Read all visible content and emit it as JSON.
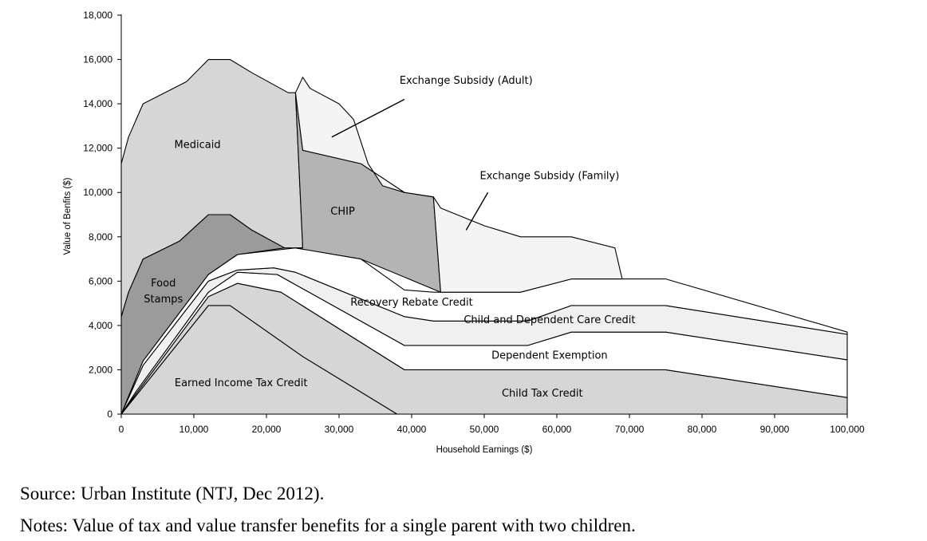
{
  "chart_data": {
    "type": "area",
    "xlabel": "Household Earnings ($)",
    "ylabel": "Value of Benfits ($)",
    "xlim": [
      0,
      100000
    ],
    "ylim": [
      0,
      18000
    ],
    "x_ticks": [
      0,
      10000,
      20000,
      30000,
      40000,
      50000,
      60000,
      70000,
      80000,
      90000,
      100000
    ],
    "x_tick_labels": [
      "0",
      "10,000",
      "20,000",
      "30,000",
      "40,000",
      "50,000",
      "60,000",
      "70,000",
      "80,000",
      "90,000",
      "100,000"
    ],
    "y_ticks": [
      0,
      2000,
      4000,
      6000,
      8000,
      10000,
      12000,
      14000,
      16000,
      18000
    ],
    "y_tick_labels": [
      "0",
      "2,000",
      "4,000",
      "6,000",
      "8,000",
      "10,000",
      "12,000",
      "14,000",
      "16,000",
      "18,000"
    ],
    "grid": false,
    "series": [
      {
        "name": "Earned Income Tax Credit",
        "color": "#d6d6d6",
        "points": [
          [
            0,
            0
          ],
          [
            12000,
            4900
          ],
          [
            15000,
            4900
          ],
          [
            25000,
            2600
          ],
          [
            38000,
            0
          ],
          [
            100000,
            0
          ]
        ],
        "label_at": [
          16500,
          1260
        ]
      },
      {
        "name": "Child Tax Credit",
        "color": "#d6d6d6",
        "points": [
          [
            0,
            0
          ],
          [
            2000,
            900
          ],
          [
            12000,
            5300
          ],
          [
            16000,
            5900
          ],
          [
            22000,
            5500
          ],
          [
            39000,
            2000
          ],
          [
            75000,
            2000
          ],
          [
            100000,
            750
          ]
        ],
        "label_at": [
          58000,
          800
        ]
      },
      {
        "name": "Dependent Exemption",
        "color": "#ffffff",
        "points": [
          [
            0,
            0
          ],
          [
            2000,
            1000
          ],
          [
            12000,
            5500
          ],
          [
            16000,
            6400
          ],
          [
            21500,
            6300
          ],
          [
            39000,
            3100
          ],
          [
            56000,
            3100
          ],
          [
            62000,
            3700
          ],
          [
            75000,
            3700
          ],
          [
            100000,
            2450
          ]
        ],
        "label_at": [
          59000,
          2500
        ]
      },
      {
        "name": "Child and Dependent Care Credit",
        "color": "#f0f0f0",
        "points": [
          [
            0,
            0
          ],
          [
            3000,
            2200
          ],
          [
            12000,
            6000
          ],
          [
            16000,
            6500
          ],
          [
            21000,
            6600
          ],
          [
            24000,
            6400
          ],
          [
            39000,
            4400
          ],
          [
            43000,
            4200
          ],
          [
            56000,
            4200
          ],
          [
            62000,
            4900
          ],
          [
            75000,
            4900
          ],
          [
            100000,
            3600
          ]
        ],
        "label_at": [
          59000,
          4100
        ]
      },
      {
        "name": "Recovery Rebate Credit",
        "color": "#ffffff",
        "points": [
          [
            0,
            0
          ],
          [
            3000,
            2400
          ],
          [
            12000,
            6300
          ],
          [
            16000,
            7200
          ],
          [
            24000,
            7500
          ],
          [
            33000,
            7000
          ],
          [
            39000,
            5600
          ],
          [
            43000,
            5500
          ],
          [
            55000,
            5500
          ],
          [
            62000,
            6100
          ],
          [
            75000,
            6100
          ],
          [
            100000,
            3700
          ]
        ],
        "label_at": [
          40000,
          4900
        ]
      },
      {
        "name": "Food Stamps",
        "color": "#9b9b9b",
        "points": [
          [
            0,
            4400
          ],
          [
            1000,
            5500
          ],
          [
            3000,
            7000
          ],
          [
            8000,
            7800
          ],
          [
            12000,
            9000
          ],
          [
            15000,
            9000
          ],
          [
            18000,
            8300
          ],
          [
            22500,
            7500
          ]
        ],
        "label_at": [
          5800,
          5400
        ]
      },
      {
        "name": "Medicaid",
        "color": "#d6d6d6",
        "points": [
          [
            0,
            11300
          ],
          [
            1000,
            12500
          ],
          [
            3000,
            14000
          ],
          [
            9000,
            15000
          ],
          [
            12000,
            16000
          ],
          [
            15000,
            16000
          ],
          [
            18000,
            15400
          ],
          [
            23000,
            14500
          ],
          [
            24000,
            14500
          ],
          [
            25000,
            7500
          ]
        ],
        "label_at": [
          10500,
          12000
        ]
      },
      {
        "name": "CHIP",
        "color": "#b4b4b4",
        "points": [
          [
            24000,
            14500
          ],
          [
            25000,
            11900
          ],
          [
            33000,
            11300
          ],
          [
            39000,
            10000
          ],
          [
            43000,
            9800
          ],
          [
            44000,
            5500
          ]
        ],
        "label_at": [
          30500,
          9000
        ]
      },
      {
        "name": "Exchange Subsidy (Adult)",
        "color": "#f4f4f4",
        "points": [
          [
            24000,
            14500
          ],
          [
            25000,
            15200
          ],
          [
            26000,
            14700
          ],
          [
            30000,
            14000
          ],
          [
            32000,
            13300
          ],
          [
            34000,
            11300
          ],
          [
            36000,
            10300
          ],
          [
            39000,
            10000
          ]
        ],
        "label_at": [
          47500,
          14900
        ]
      },
      {
        "name": "Exchange Subsidy (Family)",
        "color": "#f4f4f4",
        "points": [
          [
            43000,
            9800
          ],
          [
            44000,
            9300
          ],
          [
            50000,
            8500
          ],
          [
            55000,
            8000
          ],
          [
            62000,
            8000
          ],
          [
            68000,
            7500
          ],
          [
            69000,
            6100
          ]
        ],
        "label_at": [
          59000,
          10600
        ]
      }
    ],
    "leaders": [
      {
        "series": "Exchange Subsidy (Adult)",
        "from": [
          39000,
          14200
        ],
        "to": [
          29000,
          12500
        ]
      },
      {
        "series": "Exchange Subsidy (Family)",
        "from": [
          50500,
          10000
        ],
        "to": [
          47500,
          8300
        ]
      }
    ]
  },
  "notes": {
    "source": "Source: Urban Institute (NTJ, Dec 2012).",
    "notes": "Notes: Value of tax and value transfer benefits for a single parent with two children."
  }
}
